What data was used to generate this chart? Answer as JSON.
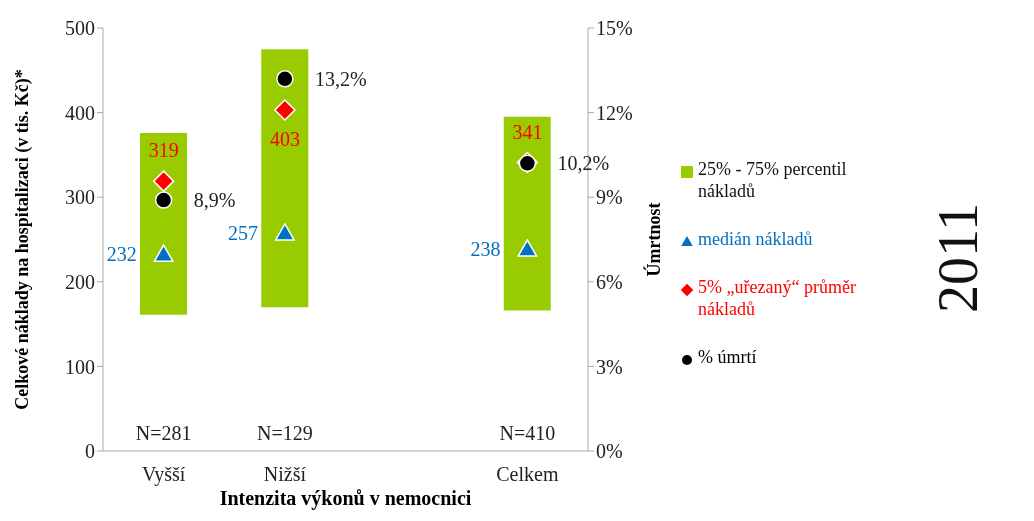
{
  "chart_data": {
    "type": "bar",
    "categories": [
      "Vyšší",
      "Nižší",
      null,
      "Celkem"
    ],
    "xlabel": "Intenzita výkonů v nemocnici",
    "ylabel": "Celkové náklady na hospitalizaci (v tis. Kč)*",
    "y2label": "Úmrtnost",
    "ylim": [
      0,
      500
    ],
    "yticks": [
      0,
      100,
      200,
      300,
      400,
      500
    ],
    "y2lim": [
      0,
      15
    ],
    "y2ticks": [
      {
        "value": 0,
        "label": "0%"
      },
      {
        "value": 3,
        "label": "3%"
      },
      {
        "value": 6,
        "label": "6%"
      },
      {
        "value": 9,
        "label": "9%"
      },
      {
        "value": 12,
        "label": "12%"
      },
      {
        "value": 15,
        "label": "15%"
      }
    ],
    "grid": false,
    "legend": "right",
    "series": [
      {
        "name": "25% - 75% percentil nákladů",
        "color": "#99cc00",
        "base": [
          161,
          170,
          null,
          166
        ],
        "values": [
          215,
          305,
          null,
          229
        ]
      },
      {
        "name": "medián nákladů",
        "type": "scatter",
        "marker": "triangle",
        "color": "#0070c0",
        "values": [
          232,
          257,
          null,
          238
        ],
        "value_labels": [
          "232",
          "257",
          null,
          "238"
        ]
      },
      {
        "name": "5% „uřezaný“ průměr nákladů",
        "type": "scatter",
        "marker": "diamond",
        "color": "#ff0000",
        "values": [
          319,
          403,
          null,
          341
        ],
        "value_labels": [
          "319",
          "403",
          null,
          "341"
        ]
      },
      {
        "name": "% úmrtí",
        "type": "scatter",
        "marker": "circle",
        "color": "#000000",
        "axis": "y2",
        "values": [
          8.9,
          13.2,
          null,
          10.2
        ],
        "value_labels": [
          "8,9%",
          "13,2%",
          null,
          "10,2%"
        ]
      }
    ],
    "annotations": [
      "N=281",
      "N=129",
      "N=410",
      "2011"
    ]
  }
}
